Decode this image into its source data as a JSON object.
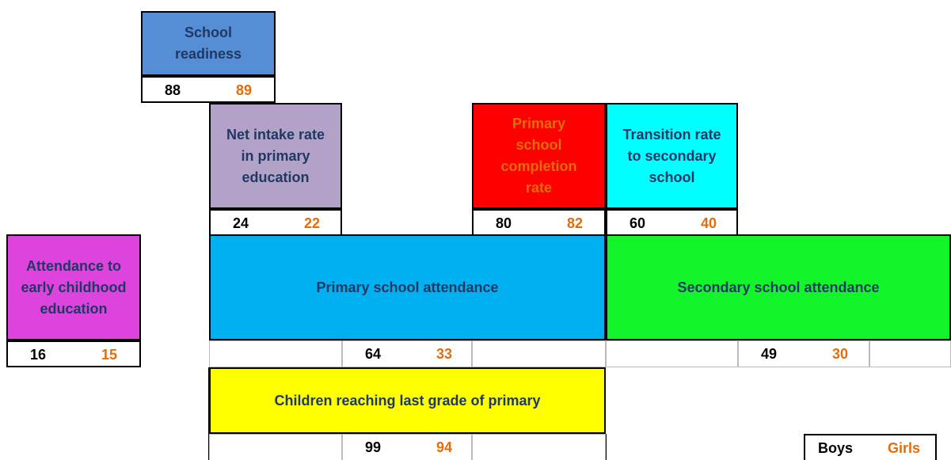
{
  "indicators": [
    {
      "label": "School readiness",
      "boys": 88,
      "girls": 89
    },
    {
      "label": "Net intake rate in primary education",
      "boys": 24,
      "girls": 22
    },
    {
      "label": "Primary school completion rate",
      "boys": 80,
      "girls": 82
    },
    {
      "label": "Transition rate to secondary school",
      "boys": 60,
      "girls": 40
    },
    {
      "label": "Attendance to early childhood education",
      "boys": 16,
      "girls": 15
    },
    {
      "label": "Primary school attendance",
      "boys": 64,
      "girls": 33
    },
    {
      "label": "Secondary school attendance",
      "boys": 49,
      "girls": 30
    },
    {
      "label": "Children reaching last grade of primary",
      "boys": 99,
      "girls": 94
    }
  ],
  "legend": {
    "boys": "Boys",
    "girls": "Girls"
  }
}
